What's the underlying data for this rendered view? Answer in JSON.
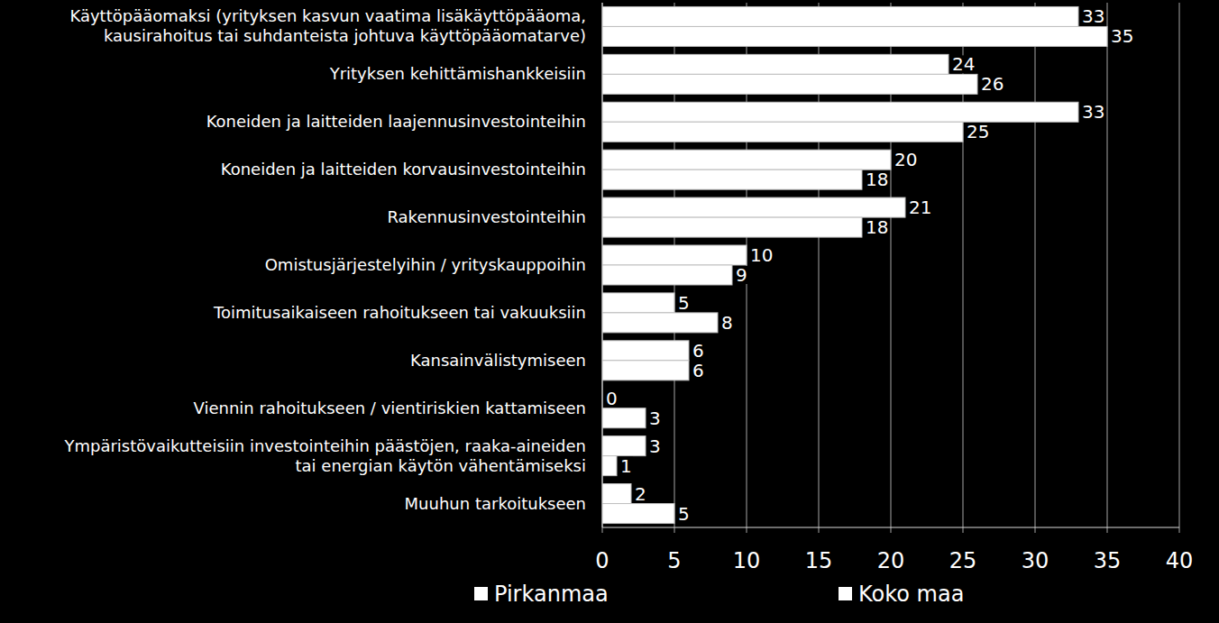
{
  "chart_data": {
    "type": "bar",
    "orientation": "horizontal",
    "categories": [
      "Käyttöpääomaksi (yrityksen kasvun vaatima lisäkäyttöpääoma,\nkausirahoitus tai suhdanteista johtuva käyttöpääomatarve)",
      "Yrityksen kehittämishankkeisiin",
      "Koneiden ja laitteiden laajennusinvestointeihin",
      "Koneiden ja laitteiden korvausinvestointeihin",
      "Rakennusinvestointeihin",
      "Omistusjärjestelyihin / yrityskauppoihin",
      "Toimitusaikaiseen rahoitukseen tai vakuuksiin",
      "Kansainvälistymiseen",
      "Viennin rahoitukseen / vientiriskien kattamiseen",
      "Ympäristövaikutteisiin investointeihin päästöjen, raaka-aineiden\ntai energian käytön vähentämiseksi",
      "Muuhun tarkoitukseen"
    ],
    "series": [
      {
        "name": "Pirkanmaa",
        "color": "#ffffff",
        "values": [
          33,
          24,
          33,
          20,
          21,
          10,
          5,
          6,
          0,
          3,
          2
        ]
      },
      {
        "name": "Koko maa",
        "color": "#ffffff",
        "values": [
          35,
          26,
          25,
          18,
          18,
          9,
          8,
          6,
          3,
          1,
          5
        ]
      }
    ],
    "xlim": [
      0,
      40
    ],
    "xticks": [
      0,
      5,
      10,
      15,
      20,
      25,
      30,
      35,
      40
    ],
    "grid": true,
    "data_labels": true,
    "legend": "bottom"
  }
}
